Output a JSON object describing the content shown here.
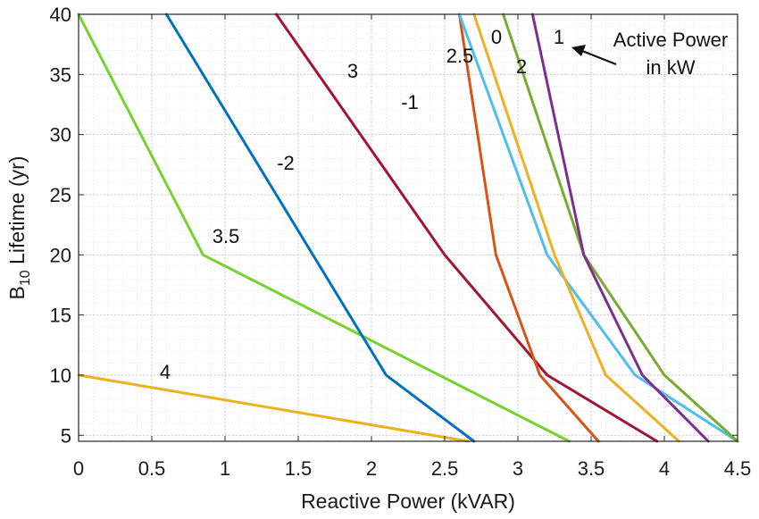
{
  "chart_data": {
    "type": "line",
    "xlabel": "Reactive Power (kVAR)",
    "ylabel_main": "B",
    "ylabel_sub": "10",
    "ylabel_rest": " Lifetime (yr)",
    "xlim": [
      0,
      4.5
    ],
    "ylim": [
      4.5,
      40
    ],
    "xticks": [
      0,
      0.5,
      1,
      1.5,
      2,
      2.5,
      3,
      3.5,
      4,
      4.5
    ],
    "xtick_labels": [
      "0",
      "0.5",
      "1",
      "1.5",
      "2",
      "2.5",
      "3",
      "3.5",
      "4",
      "4.5"
    ],
    "yticks": [
      5,
      10,
      15,
      20,
      25,
      30,
      35,
      40
    ],
    "ytick_labels": [
      "5",
      "10",
      "15",
      "20",
      "25",
      "30",
      "35",
      "40"
    ],
    "grid": true,
    "annotation": {
      "line1": "Active Power",
      "line2": "in kW"
    },
    "series": [
      {
        "name": "4",
        "color": "#EDB120",
        "x": [
          0,
          2.66
        ],
        "y": [
          10,
          4.5
        ]
      },
      {
        "name": "3.5",
        "color": "#77D12E",
        "x": [
          0,
          0.85,
          3.35
        ],
        "y": [
          40,
          20,
          4.5
        ]
      },
      {
        "name": "-2",
        "color": "#0072BD",
        "x": [
          0.6,
          2.1,
          2.7
        ],
        "y": [
          40,
          10,
          4.5
        ]
      },
      {
        "name": "3",
        "color": "#A2142F",
        "x": [
          1.35,
          2.5,
          3.2,
          3.95
        ],
        "y": [
          40,
          20,
          10,
          4.5
        ]
      },
      {
        "name": "-1",
        "color": "#D95319",
        "x": [
          2.6,
          2.85,
          3.15,
          3.55
        ],
        "y": [
          40,
          20,
          10,
          4.5
        ]
      },
      {
        "name": "2.5",
        "color": "#4DBEEE",
        "x": [
          2.6,
          3.2,
          3.8,
          4.5
        ],
        "y": [
          40,
          20,
          10,
          4.5
        ]
      },
      {
        "name": "0",
        "color": "#EDB120",
        "x": [
          2.7,
          3.25,
          3.6,
          4.1
        ],
        "y": [
          40,
          20,
          10,
          4.5
        ]
      },
      {
        "name": "2",
        "color": "#77AC30",
        "x": [
          2.9,
          3.45,
          4.0,
          4.5
        ],
        "y": [
          40,
          20,
          10,
          4.5
        ]
      },
      {
        "name": "1",
        "color": "#7E2F8E",
        "x": [
          3.1,
          3.45,
          3.85,
          4.3
        ],
        "y": [
          40,
          20,
          10,
          4.5
        ]
      }
    ]
  }
}
